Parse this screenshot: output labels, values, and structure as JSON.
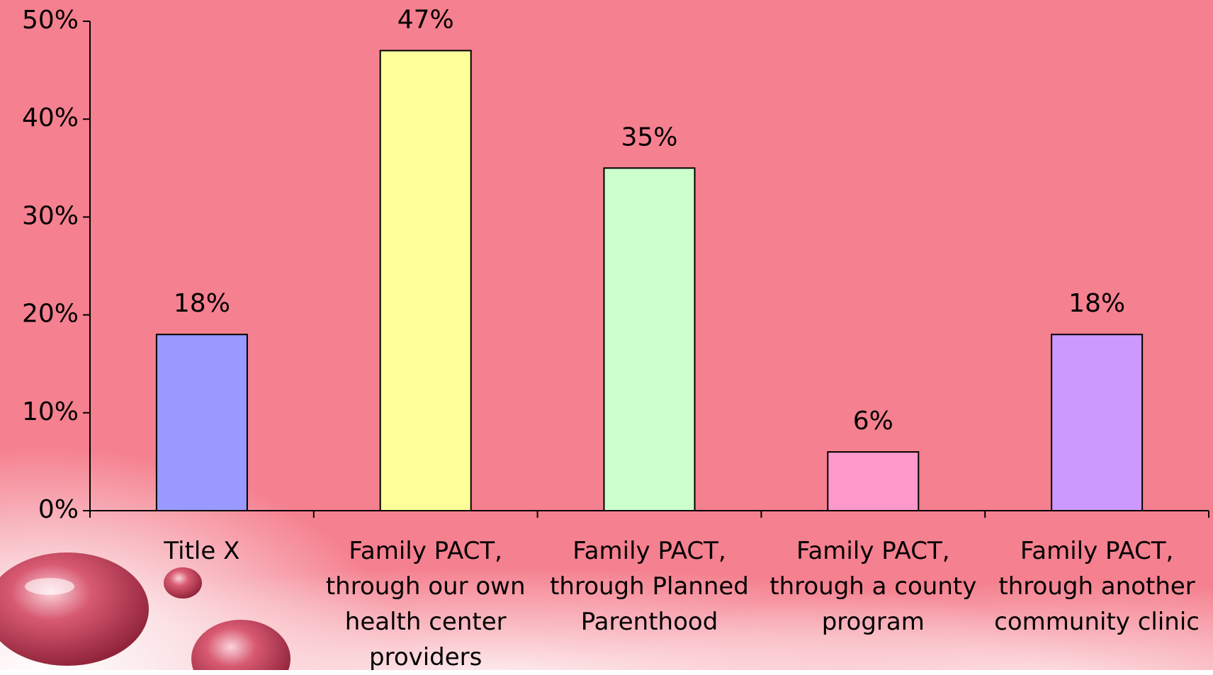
{
  "chart_data": {
    "type": "bar",
    "categories": [
      "Title X",
      "Family PACT,\nthrough our own\nhealth center\nproviders",
      "Family PACT,\nthrough Planned\nParenthood",
      "Family PACT,\nthrough a county\nprogram",
      "Family PACT,\nthrough another\ncommunity clinic"
    ],
    "values": [
      18,
      47,
      35,
      6,
      18
    ],
    "value_labels": [
      "18%",
      "47%",
      "35%",
      "6%",
      "18%"
    ],
    "colors": [
      "#9999ff",
      "#ffff99",
      "#ccffcc",
      "#ff99cc",
      "#cc99ff"
    ],
    "ylim": [
      0,
      50
    ],
    "yticks": [
      {
        "value": 0,
        "label": "0%"
      },
      {
        "value": 10,
        "label": "10%"
      },
      {
        "value": 20,
        "label": "20%"
      },
      {
        "value": 30,
        "label": "30%"
      },
      {
        "value": 40,
        "label": "40%"
      },
      {
        "value": 50,
        "label": "50%"
      }
    ],
    "grid": false
  }
}
